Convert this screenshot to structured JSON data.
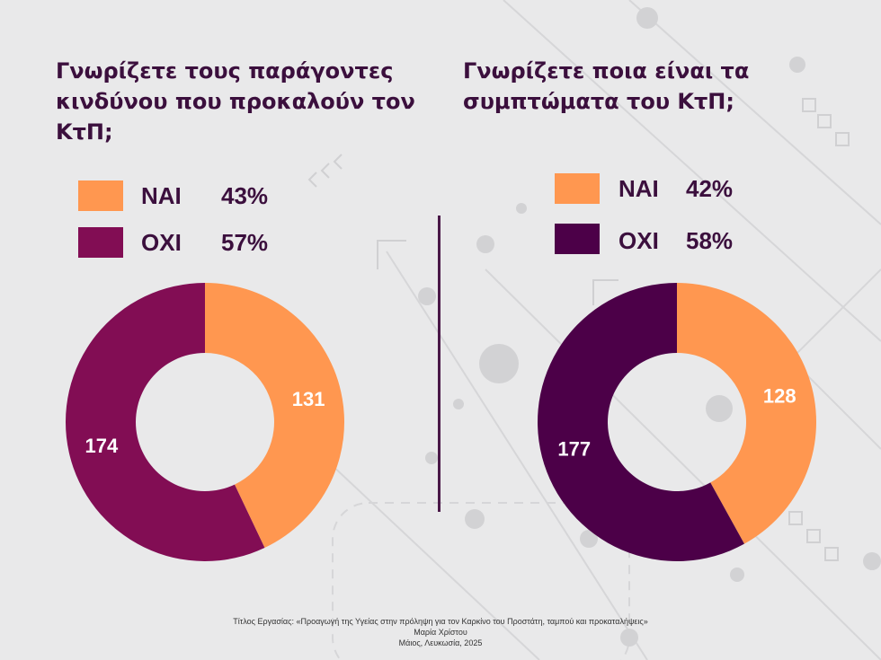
{
  "colors": {
    "nai": "#ff9750",
    "oxi_left": "#820d54",
    "oxi_right": "#4c0048",
    "title": "#3b0f3d",
    "background": "#e9e9ea",
    "label": "#ffffff"
  },
  "chart_data": [
    {
      "type": "pie",
      "style": "donut",
      "title": "Γνωρίζετε τους παράγοντες κινδύνου που προκαλούν τον ΚτΠ;",
      "legend_position": "top",
      "categories": [
        "ΝΑΙ",
        "ΟΧΙ"
      ],
      "values": [
        131,
        174
      ],
      "percent_labels": [
        "43%",
        "57%"
      ],
      "data_labels": [
        "131",
        "174"
      ]
    },
    {
      "type": "pie",
      "style": "donut",
      "title": "Γνωρίζετε ποια είναι τα συμπτώματα του ΚτΠ;",
      "legend_position": "top",
      "categories": [
        "ΝΑΙ",
        "ΟΧΙ"
      ],
      "values": [
        128,
        177
      ],
      "percent_labels": [
        "42%",
        "58%"
      ],
      "data_labels": [
        "128",
        "177"
      ]
    }
  ],
  "footer": {
    "line1": "Τίτλος Εργασίας: «Προαγωγή της Υγείας στην πρόληψη για τον Καρκίνο του Προστάτη, ταμπού και προκαταλήψεις»",
    "line2": "Μαρία Χρίστου",
    "line3": "Μάιος, Λευκωσία, 2025"
  }
}
